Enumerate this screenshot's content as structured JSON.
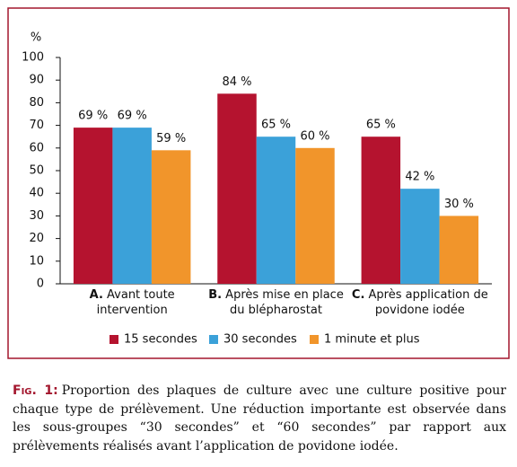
{
  "chart_data": {
    "type": "bar",
    "y_label": "%",
    "categories": [
      "A. Avant toute intervention",
      "B. Après mise en place du blépharostat",
      "C. Après application de povidone iodée"
    ],
    "series": [
      {
        "name": "15 secondes",
        "color": "#b5132f",
        "values": [
          69,
          84,
          65
        ],
        "value_labels": [
          "69 %",
          "84 %",
          "65 %"
        ]
      },
      {
        "name": "30 secondes",
        "color": "#3ba1d9",
        "values": [
          69,
          65,
          42
        ],
        "value_labels": [
          "69 %",
          "65 %",
          "42 %"
        ]
      },
      {
        "name": "1 minute et plus",
        "color": "#f1952b",
        "values": [
          59,
          60,
          30
        ],
        "value_labels": [
          "59 %",
          "60 %",
          "30 %"
        ]
      }
    ],
    "ylim": [
      0,
      100
    ],
    "yticks": [
      0,
      10,
      20,
      30,
      40,
      50,
      60,
      70,
      80,
      90,
      100
    ],
    "grid": false
  },
  "caption": {
    "label": "Fig. 1:",
    "text": "Proportion des plaques de culture avec une culture positive pour chaque type de prélèvement. Une réduction importante est observée dans les sous-groupes “30 secondes” et “60 secondes” par rapport aux prélèvements réalisés avant l’application de povidone iodée."
  }
}
